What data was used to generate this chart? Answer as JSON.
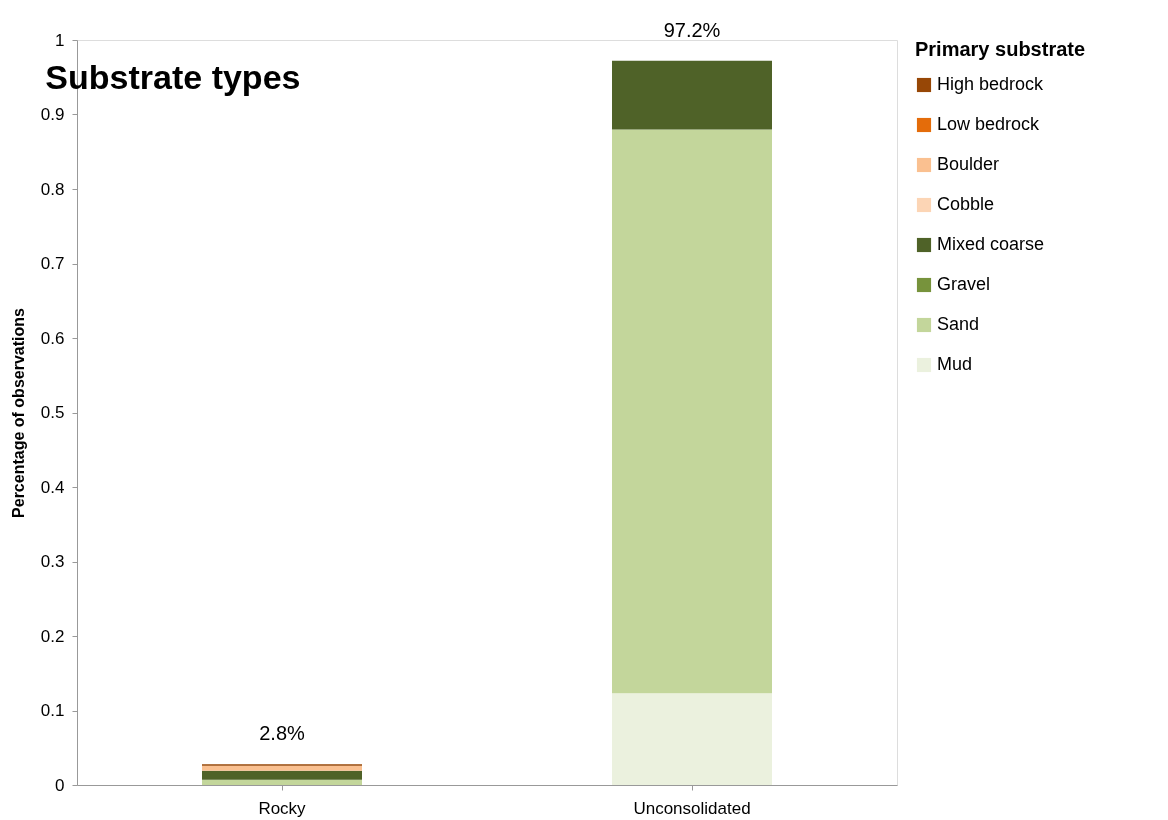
{
  "chart_data": {
    "type": "bar",
    "title": "Substrate types",
    "ylabel": "Percentage of observations",
    "legend_title": "Primary substrate",
    "categories": [
      "Rocky",
      "Unconsolidated"
    ],
    "stacked": true,
    "series": [
      {
        "name": "Mud",
        "color": "#ebf1de",
        "values": [
          null,
          0.123
        ]
      },
      {
        "name": "Sand",
        "color": "#c3d69b",
        "values": [
          0.007,
          0.757
        ]
      },
      {
        "name": "Gravel",
        "color": "#77933c",
        "values": [
          null,
          null
        ]
      },
      {
        "name": "Mixed coarse",
        "color": "#4f6228",
        "values": [
          0.012,
          0.092
        ]
      },
      {
        "name": "Cobble",
        "color": "#fcd5b5",
        "values": [
          null,
          null
        ]
      },
      {
        "name": "Boulder",
        "color": "#fac090",
        "values": [
          0.007,
          null
        ]
      },
      {
        "name": "Low bedrock",
        "color": "#e46c0a",
        "values": [
          null,
          null
        ]
      },
      {
        "name": "High bedrock",
        "color": "#974706",
        "values": [
          0.002,
          null
        ]
      }
    ],
    "ylim": [
      0,
      1
    ],
    "yticks": [
      0,
      0.1,
      0.2,
      0.3,
      0.4,
      0.5,
      0.6,
      0.7,
      0.8,
      0.9,
      1
    ],
    "totals": [
      "2.8%",
      "97.2%"
    ],
    "grid": false,
    "legend": "right"
  }
}
